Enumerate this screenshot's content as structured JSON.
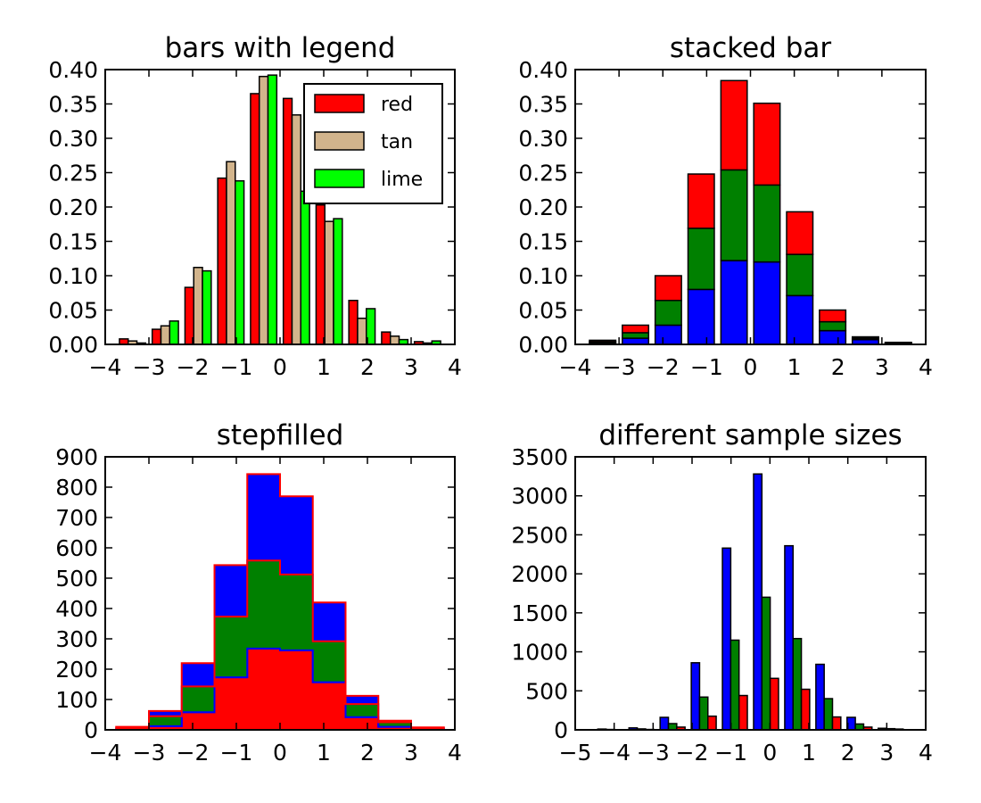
{
  "chart_data": [
    {
      "type": "bar",
      "title": "bars with legend",
      "xlabel": "",
      "ylabel": "",
      "xlim": [
        -4,
        4
      ],
      "ylim": [
        0,
        0.4
      ],
      "xticks": [
        "−4",
        "−3",
        "−2",
        "−1",
        "0",
        "1",
        "2",
        "3",
        "4"
      ],
      "yticks": [
        "0.00",
        "0.05",
        "0.10",
        "0.15",
        "0.20",
        "0.25",
        "0.30",
        "0.35",
        "0.40"
      ],
      "bin_edges": [
        -3.75,
        -3.0,
        -2.25,
        -1.5,
        -0.75,
        0.0,
        0.75,
        1.5,
        2.25,
        3.0,
        3.75
      ],
      "series": [
        {
          "name": "red",
          "color": "#ff0000",
          "values": [
            0.008,
            0.022,
            0.083,
            0.242,
            0.365,
            0.358,
            0.203,
            0.064,
            0.018,
            0.004
          ]
        },
        {
          "name": "tan",
          "color": "#d2b48c",
          "values": [
            0.005,
            0.027,
            0.112,
            0.266,
            0.39,
            0.334,
            0.179,
            0.038,
            0.012,
            0.002
          ]
        },
        {
          "name": "lime",
          "color": "#00ff00",
          "values": [
            0.002,
            0.034,
            0.107,
            0.238,
            0.392,
            0.223,
            0.183,
            0.052,
            0.007,
            0.005
          ]
        }
      ],
      "legend": {
        "location": "upper right",
        "entries": [
          "red",
          "tan",
          "lime"
        ]
      },
      "grid": false
    },
    {
      "type": "bar",
      "stacked": true,
      "title": "stacked bar",
      "xlabel": "",
      "ylabel": "",
      "xlim": [
        -4,
        4
      ],
      "ylim": [
        0,
        0.4
      ],
      "xticks": [
        "−4",
        "−3",
        "−2",
        "−1",
        "0",
        "1",
        "2",
        "3",
        "4"
      ],
      "yticks": [
        "0.00",
        "0.05",
        "0.10",
        "0.15",
        "0.20",
        "0.25",
        "0.30",
        "0.35",
        "0.40"
      ],
      "bin_edges": [
        -3.75,
        -3.0,
        -2.25,
        -1.5,
        -0.75,
        0.0,
        0.75,
        1.5,
        2.25,
        3.0,
        3.75
      ],
      "series": [
        {
          "color": "#0000ff",
          "values": [
            0.002,
            0.009,
            0.028,
            0.08,
            0.122,
            0.12,
            0.071,
            0.02,
            0.007,
            0.001
          ]
        },
        {
          "color": "#008000",
          "values": [
            0.002,
            0.008,
            0.036,
            0.089,
            0.132,
            0.112,
            0.06,
            0.013,
            0.002,
            0.001
          ]
        },
        {
          "color": "#ff0000",
          "values": [
            0.002,
            0.011,
            0.036,
            0.079,
            0.13,
            0.119,
            0.062,
            0.017,
            0.002,
            0.001
          ]
        }
      ],
      "grid": false
    },
    {
      "type": "area",
      "histtype": "stepfilled",
      "stacked": true,
      "title": "stepfilled",
      "xlabel": "",
      "ylabel": "",
      "xlim": [
        -4,
        4
      ],
      "ylim": [
        0,
        900
      ],
      "xticks": [
        "−4",
        "−3",
        "−2",
        "−1",
        "0",
        "1",
        "2",
        "3",
        "4"
      ],
      "yticks": [
        "0",
        "100",
        "200",
        "300",
        "400",
        "500",
        "600",
        "700",
        "800",
        "900"
      ],
      "bin_edges": [
        -3.75,
        -3.0,
        -2.25,
        -1.5,
        -0.75,
        0.0,
        0.75,
        1.5,
        2.25,
        3.0,
        3.75
      ],
      "series": [
        {
          "color": "#ff0000",
          "values": [
            2,
            12,
            58,
            173,
            268,
            262,
            157,
            42,
            10,
            2
          ]
        },
        {
          "color": "#008000",
          "values": [
            3,
            33,
            85,
            200,
            290,
            250,
            135,
            43,
            15,
            3
          ]
        },
        {
          "color": "#0000ff",
          "values": [
            5,
            17,
            77,
            170,
            285,
            258,
            128,
            27,
            5,
            3
          ]
        }
      ],
      "grid": false
    },
    {
      "type": "bar",
      "title": "different sample sizes",
      "xlabel": "",
      "ylabel": "",
      "xlim": [
        -5,
        4
      ],
      "ylim": [
        0,
        3500
      ],
      "xticks": [
        "−5",
        "−4",
        "−3",
        "−2",
        "−1",
        "0",
        "1",
        "2",
        "3",
        "4"
      ],
      "yticks": [
        "0",
        "500",
        "1000",
        "1500",
        "2000",
        "2500",
        "3000",
        "3500"
      ],
      "bin_edges": [
        -4.5,
        -3.7,
        -2.9,
        -2.1,
        -1.3,
        -0.5,
        0.3,
        1.1,
        1.9,
        2.7,
        3.5
      ],
      "series": [
        {
          "color": "#0000ff",
          "values": [
            10,
            25,
            160,
            860,
            2330,
            3280,
            2360,
            840,
            160,
            20
          ]
        },
        {
          "color": "#008000",
          "values": [
            5,
            12,
            80,
            420,
            1150,
            1700,
            1170,
            400,
            75,
            15
          ]
        },
        {
          "color": "#ff0000",
          "values": [
            2,
            5,
            35,
            175,
            440,
            660,
            520,
            165,
            35,
            10
          ]
        }
      ],
      "grid": false
    }
  ]
}
